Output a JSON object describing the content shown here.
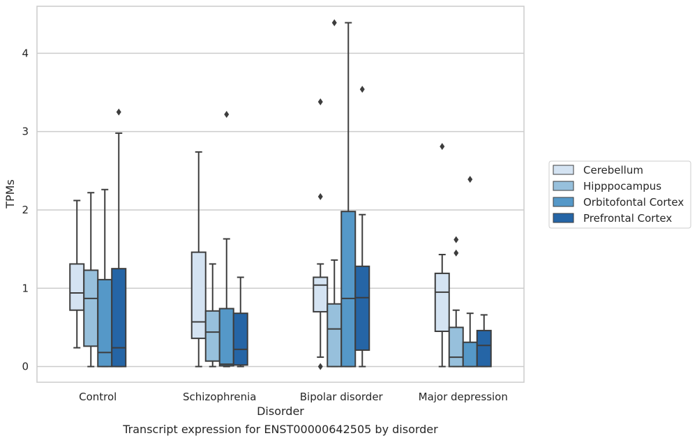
{
  "caption": "Transcript expression for ENST00000642505 by disorder",
  "chart_data": {
    "type": "box",
    "xlabel": "Disorder",
    "ylabel": "TPMs",
    "ylim": [
      -0.2,
      4.6
    ],
    "yticks": [
      0,
      1,
      2,
      3,
      4
    ],
    "grid": "horizontal",
    "legend_position": "right",
    "categories": [
      "Control",
      "Schizophrenia",
      "Bipolar disorder",
      "Major depression"
    ],
    "series": [
      {
        "name": "Cerebellum",
        "color": "#d4e3f2",
        "boxes": [
          {
            "whisker_low": 0.24,
            "q1": 0.72,
            "median": 0.94,
            "q3": 1.31,
            "whisker_high": 2.12,
            "outliers": []
          },
          {
            "whisker_low": 0.0,
            "q1": 0.36,
            "median": 0.57,
            "q3": 1.46,
            "whisker_high": 2.74,
            "outliers": []
          },
          {
            "whisker_low": 0.12,
            "q1": 0.7,
            "median": 1.04,
            "q3": 1.14,
            "whisker_high": 1.31,
            "outliers": [
              0.0,
              2.17,
              3.38
            ]
          },
          {
            "whisker_low": 0.0,
            "q1": 0.45,
            "median": 0.95,
            "q3": 1.19,
            "whisker_high": 1.43,
            "outliers": [
              2.81
            ]
          }
        ]
      },
      {
        "name": "Hipppocampus",
        "color": "#97c0dc",
        "boxes": [
          {
            "whisker_low": 0.0,
            "q1": 0.26,
            "median": 0.87,
            "q3": 1.23,
            "whisker_high": 2.22,
            "outliers": []
          },
          {
            "whisker_low": 0.0,
            "q1": 0.07,
            "median": 0.44,
            "q3": 0.71,
            "whisker_high": 1.31,
            "outliers": []
          },
          {
            "whisker_low": 0.0,
            "q1": 0.0,
            "median": 0.48,
            "q3": 0.8,
            "whisker_high": 1.36,
            "outliers": [
              4.39
            ]
          },
          {
            "whisker_low": 0.0,
            "q1": 0.0,
            "median": 0.12,
            "q3": 0.5,
            "whisker_high": 0.72,
            "outliers": [
              1.45,
              1.62
            ]
          }
        ]
      },
      {
        "name": "Orbitofontal Cortex",
        "color": "#5598c8",
        "boxes": [
          {
            "whisker_low": 0.0,
            "q1": 0.0,
            "median": 0.18,
            "q3": 1.11,
            "whisker_high": 2.26,
            "outliers": []
          },
          {
            "whisker_low": 0.0,
            "q1": 0.01,
            "median": 0.03,
            "q3": 0.74,
            "whisker_high": 1.63,
            "outliers": [
              3.22
            ]
          },
          {
            "whisker_low": 0.0,
            "q1": 0.0,
            "median": 0.87,
            "q3": 1.98,
            "whisker_high": 4.39,
            "outliers": []
          },
          {
            "whisker_low": 0.0,
            "q1": 0.0,
            "median": 0.0,
            "q3": 0.31,
            "whisker_high": 0.68,
            "outliers": [
              2.39
            ]
          }
        ]
      },
      {
        "name": "Prefrontal Cortex",
        "color": "#2565a6",
        "boxes": [
          {
            "whisker_low": 0.0,
            "q1": 0.0,
            "median": 0.24,
            "q3": 1.25,
            "whisker_high": 2.98,
            "outliers": [
              3.25
            ]
          },
          {
            "whisker_low": 0.0,
            "q1": 0.02,
            "median": 0.22,
            "q3": 0.68,
            "whisker_high": 1.14,
            "outliers": []
          },
          {
            "whisker_low": 0.0,
            "q1": 0.21,
            "median": 0.88,
            "q3": 1.28,
            "whisker_high": 1.94,
            "outliers": [
              3.54
            ]
          },
          {
            "whisker_low": 0.0,
            "q1": 0.0,
            "median": 0.27,
            "q3": 0.46,
            "whisker_high": 0.66,
            "outliers": []
          }
        ]
      }
    ]
  }
}
